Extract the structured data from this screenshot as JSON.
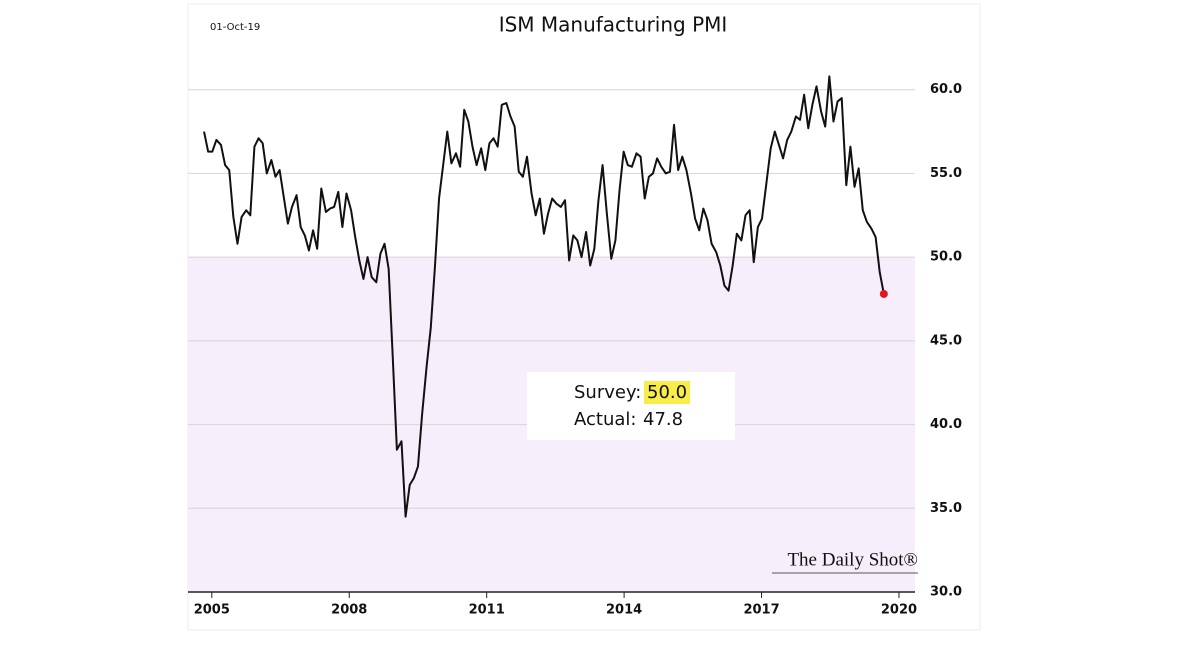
{
  "chart_data": {
    "type": "line",
    "title": "ISM Manufacturing PMI",
    "date": "01-Oct-19",
    "source": "The Daily Shot®",
    "annotation": {
      "survey_label": "Survey:",
      "survey_value": "50.0",
      "actual_label": "Actual:",
      "actual_value": "47.8"
    },
    "color": "#111111",
    "last_point_color": "#e8141c",
    "shade_below": 50,
    "shade_color": "#f6eefa",
    "grid": true,
    "xlim": [
      2004.48,
      2020.35
    ],
    "xticks": [
      2005,
      2008,
      2011,
      2014,
      2017,
      2020
    ],
    "ylim": [
      30,
      65
    ],
    "yticks": [
      {
        "value": 30,
        "label": "30.0"
      },
      {
        "value": 35,
        "label": "35.0"
      },
      {
        "value": 40,
        "label": "40.0"
      },
      {
        "value": 45,
        "label": "45.0"
      },
      {
        "value": 50,
        "label": "50.0"
      },
      {
        "value": 55,
        "label": "55.0"
      },
      {
        "value": 60,
        "label": "60.0"
      }
    ],
    "x": [
      2004.83,
      2004.92,
      2005.01,
      2005.1,
      2005.2,
      2005.29,
      2005.38,
      2005.47,
      2005.56,
      2005.65,
      2005.75,
      2005.84,
      2005.93,
      2006.02,
      2006.11,
      2006.2,
      2006.3,
      2006.39,
      2006.48,
      2006.57,
      2006.66,
      2006.75,
      2006.85,
      2006.94,
      2007.03,
      2007.12,
      2007.21,
      2007.3,
      2007.39,
      2007.49,
      2007.58,
      2007.67,
      2007.76,
      2007.85,
      2007.94,
      2008.04,
      2008.13,
      2008.22,
      2008.31,
      2008.4,
      2008.49,
      2008.59,
      2008.68,
      2008.77,
      2008.86,
      2008.95,
      2009.04,
      2009.14,
      2009.23,
      2009.32,
      2009.41,
      2009.5,
      2009.59,
      2009.69,
      2009.78,
      2009.87,
      2009.96,
      2010.05,
      2010.14,
      2010.23,
      2010.33,
      2010.42,
      2010.51,
      2010.6,
      2010.69,
      2010.78,
      2010.88,
      2010.97,
      2011.06,
      2011.15,
      2011.24,
      2011.33,
      2011.43,
      2011.52,
      2011.61,
      2011.7,
      2011.79,
      2011.88,
      2011.98,
      2012.07,
      2012.16,
      2012.25,
      2012.34,
      2012.43,
      2012.52,
      2012.62,
      2012.71,
      2012.8,
      2012.89,
      2012.98,
      2013.07,
      2013.17,
      2013.26,
      2013.35,
      2013.44,
      2013.53,
      2013.62,
      2013.72,
      2013.81,
      2013.9,
      2013.99,
      2014.08,
      2014.17,
      2014.27,
      2014.36,
      2014.45,
      2014.54,
      2014.63,
      2014.72,
      2014.81,
      2014.91,
      2015.0,
      2015.09,
      2015.18,
      2015.27,
      2015.36,
      2015.46,
      2015.55,
      2015.64,
      2015.73,
      2015.82,
      2015.91,
      2016.01,
      2016.1,
      2016.19,
      2016.28,
      2016.37,
      2016.46,
      2016.56,
      2016.65,
      2016.74,
      2016.83,
      2016.92,
      2017.01,
      2017.11,
      2017.2,
      2017.29,
      2017.38,
      2017.47,
      2017.56,
      2017.65,
      2017.75,
      2017.84,
      2017.93,
      2018.02,
      2018.11,
      2018.2,
      2018.3,
      2018.39,
      2018.48,
      2018.57,
      2018.66,
      2018.75,
      2018.85,
      2018.94,
      2019.03,
      2019.12,
      2019.21,
      2019.3,
      2019.4,
      2019.49,
      2019.58,
      2019.67
    ],
    "values": [
      57.5,
      56.3,
      56.3,
      57.0,
      56.7,
      55.5,
      55.2,
      52.4,
      50.8,
      52.4,
      52.8,
      52.5,
      56.6,
      57.1,
      56.8,
      55.0,
      55.8,
      54.8,
      55.2,
      53.6,
      52.0,
      53.0,
      53.7,
      51.8,
      51.3,
      50.4,
      51.6,
      50.5,
      54.1,
      52.7,
      52.9,
      53.0,
      53.9,
      51.8,
      53.8,
      52.8,
      51.2,
      49.8,
      48.7,
      50.0,
      48.8,
      48.5,
      50.2,
      50.8,
      49.3,
      44.0,
      38.5,
      39.0,
      34.5,
      36.4,
      36.8,
      37.5,
      40.6,
      43.5,
      45.8,
      49.4,
      53.5,
      55.5,
      57.5,
      55.6,
      56.2,
      55.4,
      58.8,
      58.1,
      56.6,
      55.5,
      56.5,
      55.2,
      56.8,
      57.1,
      56.6,
      59.1,
      59.2,
      58.4,
      57.8,
      55.1,
      54.8,
      56.0,
      53.8,
      52.5,
      53.5,
      51.4,
      52.6,
      53.5,
      53.2,
      53.0,
      53.4,
      49.8,
      51.3,
      51.0,
      50.0,
      51.5,
      49.5,
      50.5,
      53.4,
      55.5,
      52.7,
      49.9,
      51.0,
      54.0,
      56.3,
      55.5,
      55.4,
      56.2,
      56.0,
      53.5,
      54.8,
      55.0,
      55.9,
      55.4,
      55.0,
      55.1,
      57.9,
      55.2,
      56.0,
      55.2,
      53.8,
      52.3,
      51.6,
      52.9,
      52.2,
      50.8,
      50.3,
      49.5,
      48.3,
      48.0,
      49.5,
      51.4,
      51.0,
      52.5,
      52.8,
      49.7,
      51.8,
      52.3,
      54.5,
      56.5,
      57.5,
      56.7,
      55.9,
      57.0,
      57.5,
      58.4,
      58.2,
      59.7,
      57.7,
      59.1,
      60.2,
      58.7,
      57.8,
      60.8,
      58.1,
      59.3,
      59.5,
      54.3,
      56.6,
      54.2,
      55.3,
      52.8,
      52.1,
      51.7,
      51.2,
      49.1,
      47.8
    ]
  }
}
